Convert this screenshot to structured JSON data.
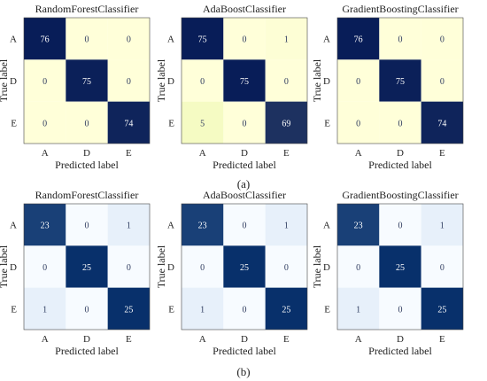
{
  "chart_data": [
    {
      "type": "heatmap",
      "panel": "(a)",
      "title": "RandomForestClassifier",
      "xlabel": "Predicted label",
      "ylabel": "True label",
      "x_categories": [
        "A",
        "D",
        "E"
      ],
      "y_categories": [
        "A",
        "D",
        "E"
      ],
      "values": [
        [
          76,
          0,
          0
        ],
        [
          0,
          75,
          0
        ],
        [
          0,
          0,
          74
        ]
      ],
      "colormap": "YlGnBu",
      "vmax": 76
    },
    {
      "type": "heatmap",
      "panel": "(a)",
      "title": "AdaBoostClassifier",
      "xlabel": "Predicted label",
      "ylabel": "True label",
      "x_categories": [
        "A",
        "D",
        "E"
      ],
      "y_categories": [
        "A",
        "D",
        "E"
      ],
      "values": [
        [
          75,
          0,
          1
        ],
        [
          0,
          75,
          0
        ],
        [
          5,
          0,
          69
        ]
      ],
      "colormap": "YlGnBu",
      "vmax": 75
    },
    {
      "type": "heatmap",
      "panel": "(a)",
      "title": "GradientBoostingClassifier",
      "xlabel": "Predicted label",
      "ylabel": "True label",
      "x_categories": [
        "A",
        "D",
        "E"
      ],
      "y_categories": [
        "A",
        "D",
        "E"
      ],
      "values": [
        [
          76,
          0,
          0
        ],
        [
          0,
          75,
          0
        ],
        [
          0,
          0,
          74
        ]
      ],
      "colormap": "YlGnBu",
      "vmax": 76
    },
    {
      "type": "heatmap",
      "panel": "(b)",
      "title": "RandomForestClassifier",
      "xlabel": "Predicted label",
      "ylabel": "True label",
      "x_categories": [
        "A",
        "D",
        "E"
      ],
      "y_categories": [
        "A",
        "D",
        "E"
      ],
      "values": [
        [
          23,
          0,
          1
        ],
        [
          0,
          25,
          0
        ],
        [
          1,
          0,
          25
        ]
      ],
      "colormap": "Blues",
      "vmax": 25
    },
    {
      "type": "heatmap",
      "panel": "(b)",
      "title": "AdaBoostClassifier",
      "xlabel": "Predicted label",
      "ylabel": "True label",
      "x_categories": [
        "A",
        "D",
        "E"
      ],
      "y_categories": [
        "A",
        "D",
        "E"
      ],
      "values": [
        [
          23,
          0,
          1
        ],
        [
          0,
          25,
          0
        ],
        [
          1,
          0,
          25
        ]
      ],
      "colormap": "Blues",
      "vmax": 25
    },
    {
      "type": "heatmap",
      "panel": "(b)",
      "title": "GradientBoostingClassifier",
      "xlabel": "Predicted label",
      "ylabel": "True label",
      "x_categories": [
        "A",
        "D",
        "E"
      ],
      "y_categories": [
        "A",
        "D",
        "E"
      ],
      "values": [
        [
          23,
          0,
          1
        ],
        [
          0,
          25,
          0
        ],
        [
          1,
          0,
          25
        ]
      ],
      "colormap": "Blues",
      "vmax": 25
    }
  ],
  "captions": {
    "a": "(a)",
    "b": "(b)"
  },
  "colors": {
    "ylgnbu_low": "#ffffd9",
    "ylgnbu_mid": "#edf8b1",
    "ylgnbu_high": "#081d58",
    "blues_low": "#f7fbff",
    "blues_mid": "#c6dbef",
    "blues_high": "#08306b",
    "text_dark": "#2d3a5e",
    "text_light": "#ffffff"
  }
}
